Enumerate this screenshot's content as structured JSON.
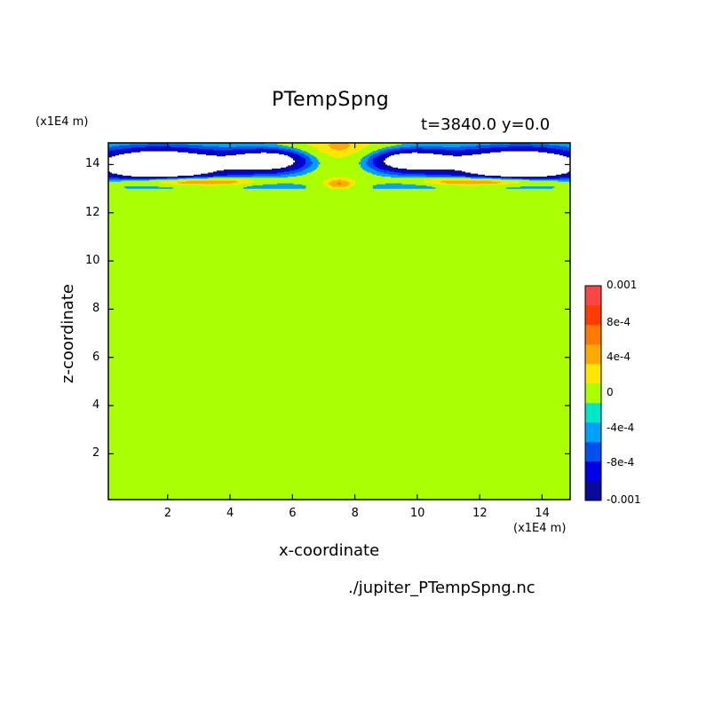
{
  "title": "PTempSpng",
  "time_label": "t=3840.0 y=0.0",
  "z_scale_label": "(x1E4 m)",
  "x_scale_label": "(x1E4 m)",
  "source_file": "./jupiter_PTempSpng.nc",
  "chart_data": {
    "type": "heatmap",
    "title": "PTempSpng",
    "xlabel": "x-coordinate",
    "ylabel": "z-coordinate",
    "xlim": [
      0.1,
      14.9
    ],
    "ylim": [
      0.1,
      14.9
    ],
    "x_ticks": [
      "2",
      "4",
      "6",
      "8",
      "10",
      "12",
      "14"
    ],
    "y_ticks": [
      "2",
      "4",
      "6",
      "8",
      "10",
      "12",
      "14"
    ],
    "background_value": 0,
    "colorbar": {
      "levels": [
        -0.001,
        -0.0008,
        -0.0006,
        -0.0004,
        -0.0002,
        0,
        0.0002,
        0.0004,
        0.0006,
        0.0008,
        0.001
      ],
      "colors": [
        "#0a0a9a",
        "#0000e6",
        "#0050f0",
        "#00a0ff",
        "#00e6c8",
        "#aaff00",
        "#ffe600",
        "#ffaa00",
        "#ff7800",
        "#ff3c00",
        "#ff4646"
      ],
      "tick_labels": [
        {
          "value": 0.001,
          "label": "0.001"
        },
        {
          "value": 0.0008,
          "label": "8e-4"
        },
        {
          "value": 0.0004,
          "label": "4e-4"
        },
        {
          "value": 0,
          "label": "0"
        },
        {
          "value": -0.0004,
          "label": "-4e-4"
        },
        {
          "value": -0.0008,
          "label": "-8e-4"
        },
        {
          "value": -0.001,
          "label": "-0.001"
        }
      ]
    },
    "features": [
      {
        "name": "central warm anomaly",
        "x_center": 7.5,
        "z_center": 14.4,
        "max_value": 0.0008
      },
      {
        "name": "left cold anomaly (below range)",
        "x_center": 1.7,
        "z_center": 14.0,
        "min_value": -0.0012
      },
      {
        "name": "right cold anomaly (below range)",
        "x_center": 13.3,
        "z_center": 14.0,
        "min_value": -0.0012
      },
      {
        "name": "left inner cold lobe",
        "x_center": 5.5,
        "z_center": 14.2,
        "min_value": -0.0012
      },
      {
        "name": "right inner cold lobe",
        "x_center": 9.5,
        "z_center": 14.2,
        "min_value": -0.0012
      }
    ]
  }
}
